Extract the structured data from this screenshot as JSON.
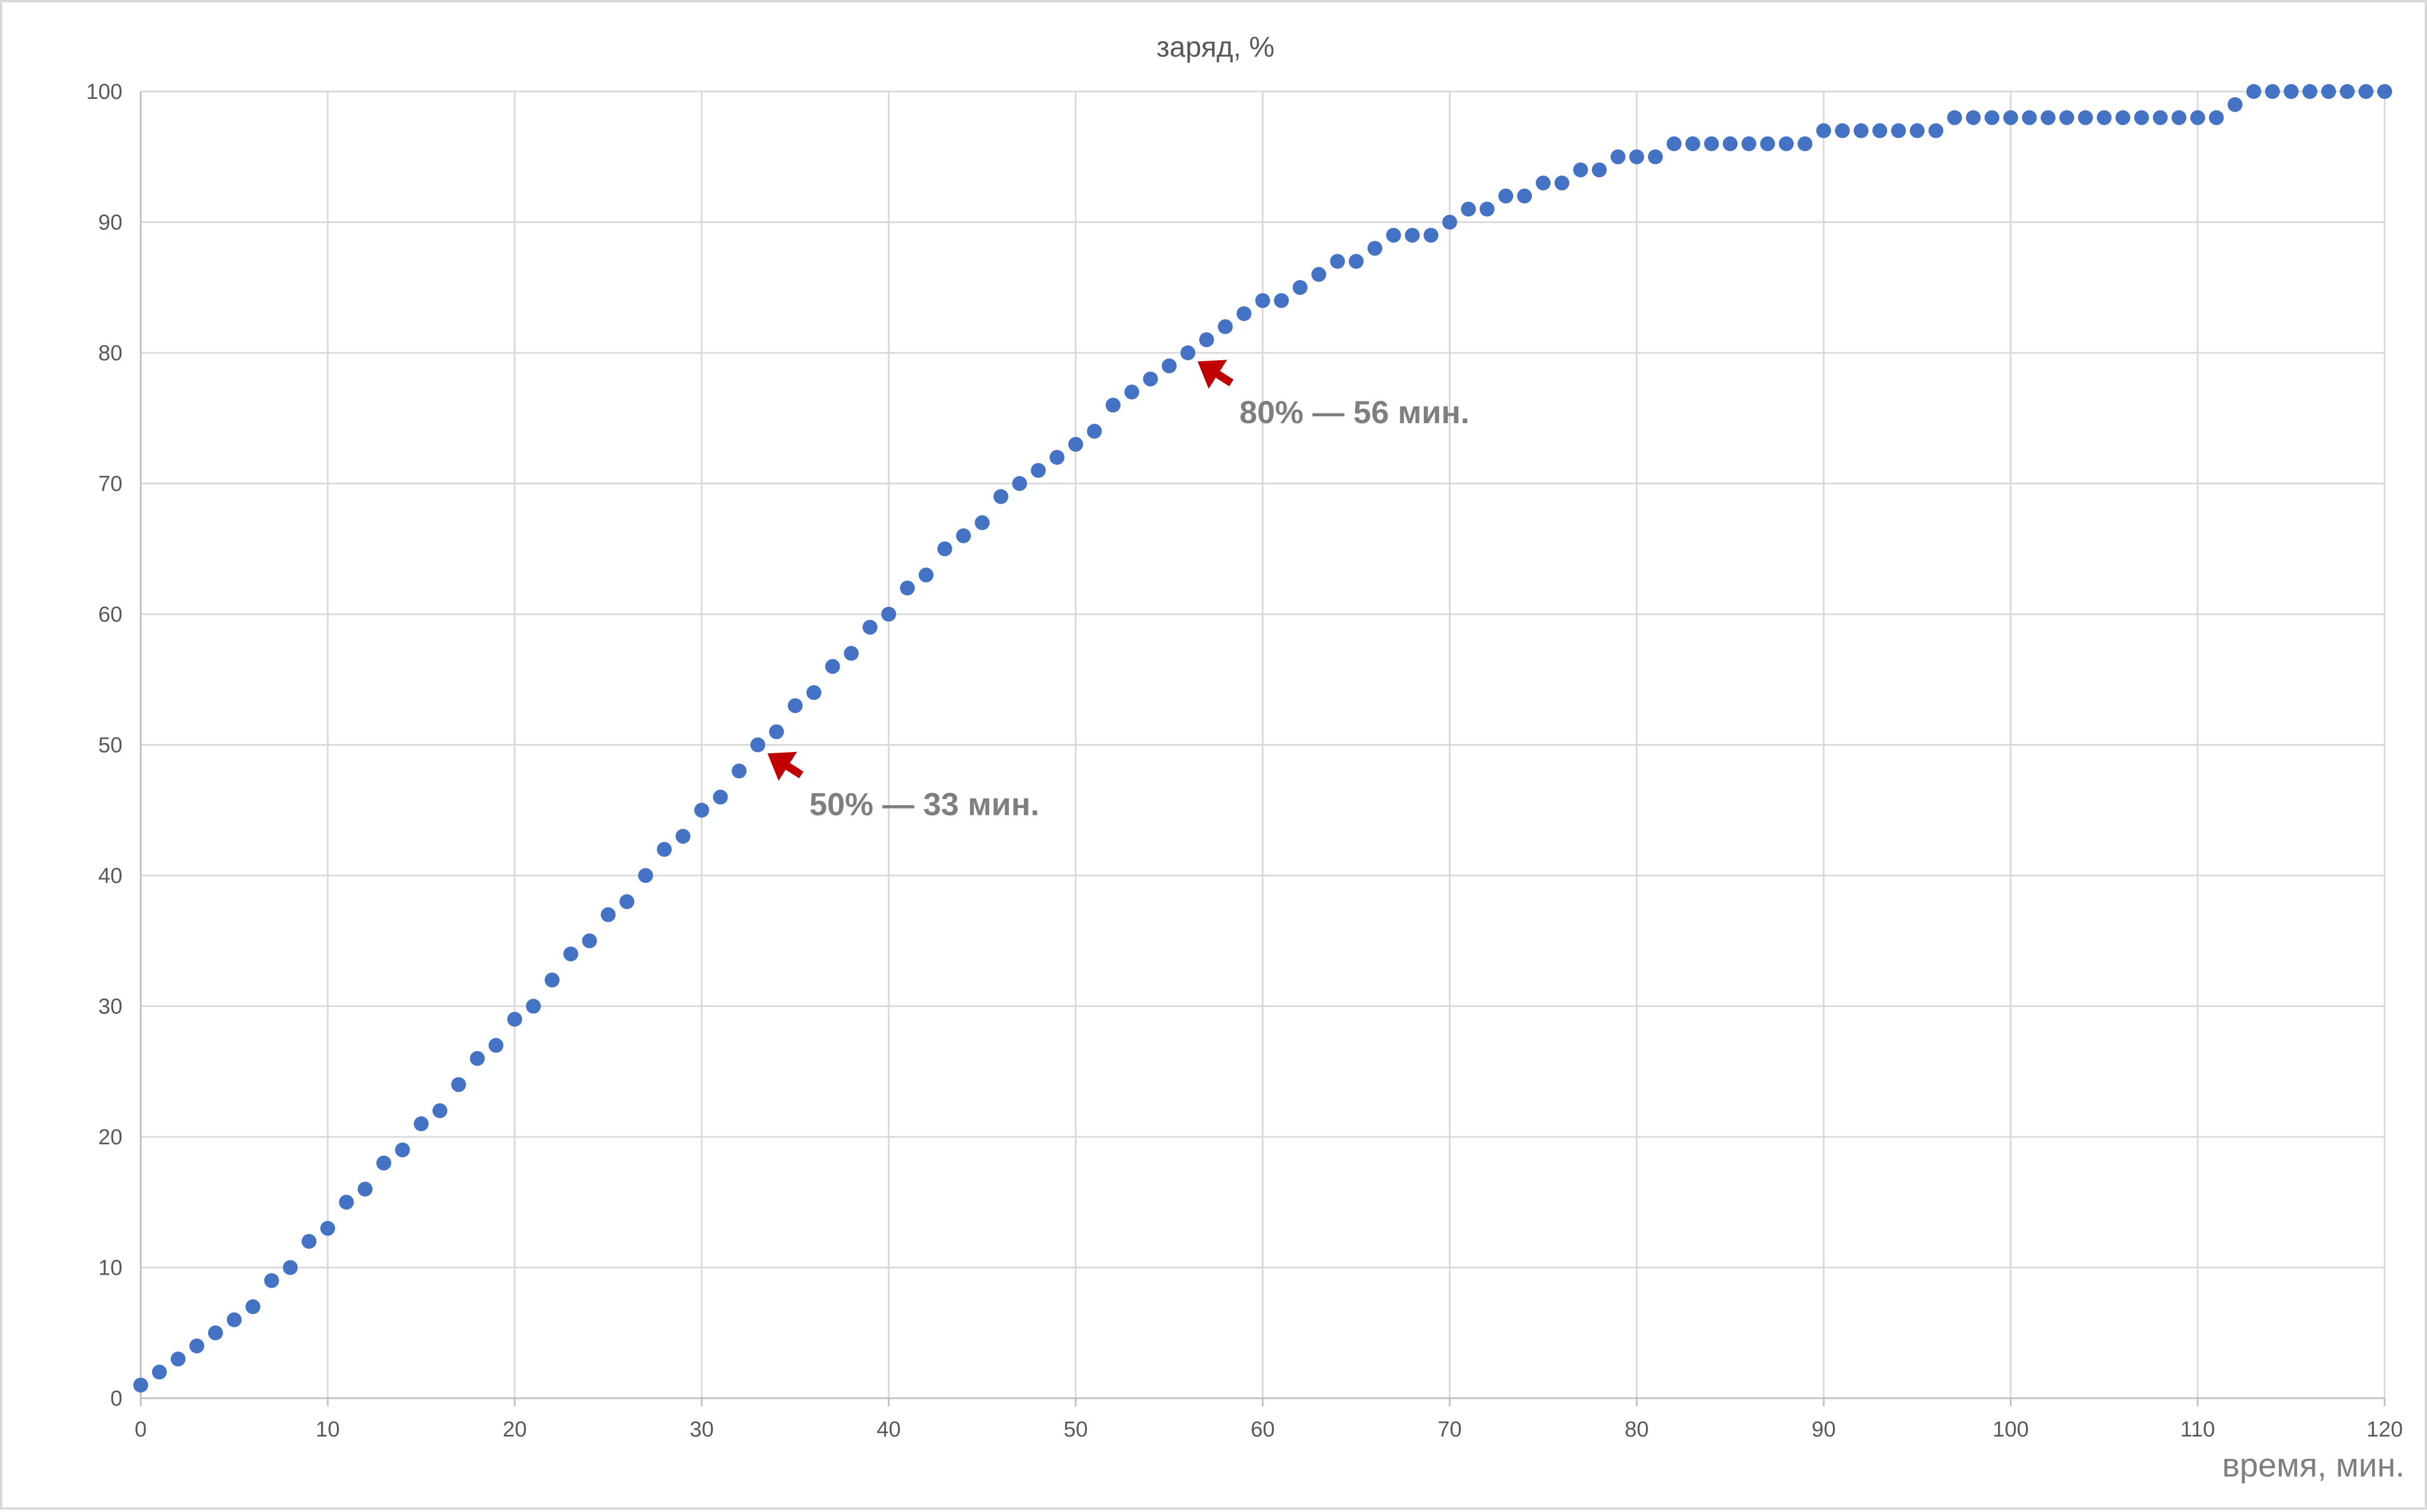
{
  "chart_data": {
    "type": "scatter",
    "title": "заряд, %",
    "xlabel": "время, мин.",
    "ylabel": "",
    "xlim": [
      0,
      120
    ],
    "ylim": [
      0,
      100
    ],
    "x_ticks": [
      0,
      10,
      20,
      30,
      40,
      50,
      60,
      70,
      80,
      90,
      100,
      110,
      120
    ],
    "y_ticks": [
      0,
      10,
      20,
      30,
      40,
      50,
      60,
      70,
      80,
      90,
      100
    ],
    "grid": true,
    "legend": "none",
    "marker_color": "#4472c4",
    "annotation_color": "#c00000",
    "series": [
      {
        "x": [
          0,
          1,
          2,
          3,
          4,
          5,
          6,
          7,
          8,
          9,
          10,
          11,
          12,
          13,
          14,
          15,
          16,
          17,
          18,
          19,
          20,
          21,
          22,
          23,
          24,
          25,
          26,
          27,
          28,
          29,
          30,
          31,
          32,
          33,
          34,
          35,
          36,
          37,
          38,
          39,
          40,
          41,
          42,
          43,
          44,
          45,
          46,
          47,
          48,
          49,
          50,
          51,
          52,
          53,
          54,
          55,
          56,
          57,
          58,
          59,
          60,
          61,
          62,
          63,
          64,
          65,
          66,
          67,
          68,
          69,
          70,
          71,
          72,
          73,
          74,
          75,
          76,
          77,
          78,
          79,
          80,
          81,
          82,
          83,
          84,
          85,
          86,
          87,
          88,
          89,
          90,
          91,
          92,
          93,
          94,
          95,
          96,
          97,
          98,
          99,
          100,
          101,
          102,
          103,
          104,
          105,
          106,
          107,
          108,
          109,
          110,
          111,
          112,
          113,
          114,
          115,
          116,
          117,
          118,
          119,
          120
        ],
        "values": [
          1,
          2,
          3,
          4,
          5,
          6,
          7,
          9,
          10,
          12,
          13,
          15,
          16,
          18,
          19,
          21,
          22,
          24,
          26,
          27,
          29,
          30,
          32,
          34,
          35,
          37,
          38,
          40,
          42,
          43,
          45,
          46,
          48,
          50,
          51,
          53,
          54,
          56,
          57,
          59,
          60,
          62,
          63,
          65,
          66,
          67,
          69,
          70,
          71,
          72,
          73,
          74,
          76,
          77,
          78,
          79,
          80,
          81,
          82,
          83,
          84,
          84,
          85,
          86,
          87,
          87,
          88,
          89,
          89,
          89,
          90,
          91,
          91,
          92,
          92,
          93,
          93,
          94,
          94,
          95,
          95,
          95,
          96,
          96,
          96,
          96,
          96,
          96,
          96,
          96,
          97,
          97,
          97,
          97,
          97,
          97,
          97,
          98,
          98,
          98,
          98,
          98,
          98,
          98,
          98,
          98,
          98,
          98,
          98,
          98,
          98,
          98,
          99,
          100,
          100,
          100,
          100,
          100,
          100,
          100,
          100
        ]
      }
    ],
    "annotations": [
      {
        "text": "50% — 33 мин.",
        "x": 33,
        "y": 50
      },
      {
        "text": "80% — 56 мин.",
        "x": 56,
        "y": 80
      }
    ]
  }
}
